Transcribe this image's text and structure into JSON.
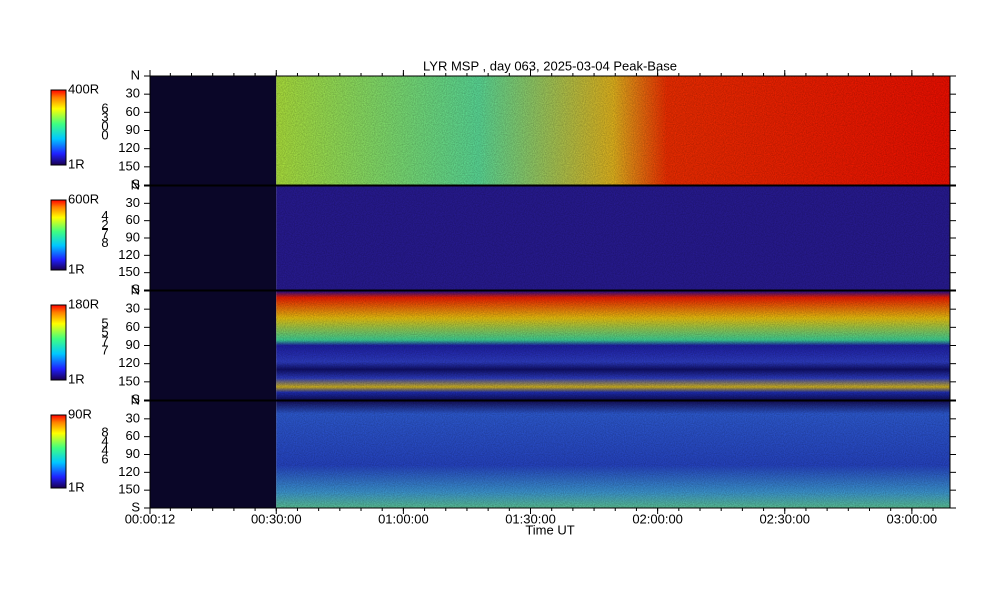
{
  "title": "LYR MSP , day 063, 2025-03-04 Peak-Base",
  "x_label": "Time UT",
  "xlim": [
    12,
    11340
  ],
  "xticks": [
    {
      "value": 12,
      "label": "00:00:12"
    },
    {
      "value": 1800,
      "label": "00:30:00"
    },
    {
      "value": 3600,
      "label": "01:00:00"
    },
    {
      "value": 5400,
      "label": "01:30:00"
    },
    {
      "value": 7200,
      "label": "02:00:00"
    },
    {
      "value": 9000,
      "label": "02:30:00"
    },
    {
      "value": 10800,
      "label": "03:00:00"
    }
  ],
  "chart_data": [
    {
      "type": "keogram",
      "channel": "6300",
      "colorbar": {
        "max": "400R",
        "min": "1R"
      },
      "ylim": [
        0,
        180
      ],
      "yticks": [
        {
          "value": 0,
          "label": "N"
        },
        30,
        60,
        90,
        120,
        150,
        {
          "value": 180,
          "label": "S"
        }
      ]
    },
    {
      "type": "keogram",
      "channel": "4278",
      "colorbar": {
        "max": "600R",
        "min": "1R"
      },
      "ylim": [
        0,
        180
      ],
      "yticks": [
        {
          "value": 0,
          "label": "N"
        },
        30,
        60,
        90,
        120,
        150,
        {
          "value": 180,
          "label": "S"
        }
      ]
    },
    {
      "type": "keogram",
      "channel": "5577",
      "colorbar": {
        "max": "180R",
        "min": "1R"
      },
      "ylim": [
        0,
        180
      ],
      "yticks": [
        {
          "value": 0,
          "label": "N"
        },
        30,
        60,
        90,
        120,
        150,
        {
          "value": 180,
          "label": "S"
        }
      ]
    },
    {
      "type": "keogram",
      "channel": "8446",
      "colorbar": {
        "max": "90R",
        "min": "1R"
      },
      "ylim": [
        0,
        180
      ],
      "yticks": [
        {
          "value": 0,
          "label": "N"
        },
        30,
        60,
        90,
        120,
        150,
        {
          "value": 180,
          "label": "S"
        }
      ]
    }
  ]
}
